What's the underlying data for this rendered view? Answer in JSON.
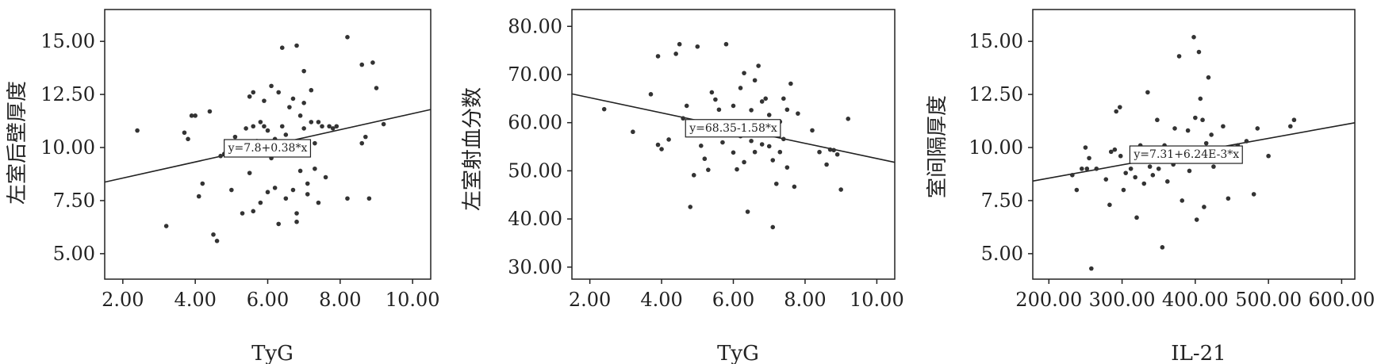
{
  "chart_data": [
    {
      "type": "scatter",
      "xlabel": "TyG",
      "ylabel": "左室后壁厚度",
      "xlim": [
        1.5,
        10.5
      ],
      "ylim": [
        3.8,
        16.5
      ],
      "x_ticks": [
        "2.00",
        "4.00",
        "6.00",
        "8.00",
        "10.00"
      ],
      "x_tick_values": [
        2,
        4,
        6,
        8,
        10
      ],
      "y_ticks": [
        "5.00",
        "7.50",
        "10.00",
        "12.50",
        "15.00"
      ],
      "y_tick_values": [
        5,
        7.5,
        10,
        12.5,
        15
      ],
      "fit_line": {
        "intercept": 7.8,
        "slope": 0.38
      },
      "equation": "y=7.8+0.38*x",
      "equation_at": [
        6.0,
        10.0
      ],
      "points": [
        [
          2.4,
          10.8
        ],
        [
          3.2,
          6.3
        ],
        [
          3.7,
          10.7
        ],
        [
          3.8,
          10.4
        ],
        [
          3.9,
          11.5
        ],
        [
          4.0,
          11.5
        ],
        [
          4.1,
          7.7
        ],
        [
          4.2,
          8.3
        ],
        [
          4.4,
          11.7
        ],
        [
          4.5,
          5.9
        ],
        [
          4.6,
          5.6
        ],
        [
          4.7,
          9.6
        ],
        [
          4.8,
          9.7
        ],
        [
          4.9,
          10.1
        ],
        [
          5.0,
          8.0
        ],
        [
          5.1,
          10.5
        ],
        [
          5.2,
          10.2
        ],
        [
          5.3,
          6.9
        ],
        [
          5.4,
          10.9
        ],
        [
          5.5,
          12.4
        ],
        [
          5.5,
          8.8
        ],
        [
          5.6,
          11.0
        ],
        [
          5.6,
          12.6
        ],
        [
          5.6,
          7.0
        ],
        [
          5.7,
          10.3
        ],
        [
          5.8,
          11.2
        ],
        [
          5.8,
          7.4
        ],
        [
          5.9,
          11.0
        ],
        [
          5.9,
          12.2
        ],
        [
          6.0,
          7.9
        ],
        [
          6.0,
          10.8
        ],
        [
          6.1,
          12.9
        ],
        [
          6.1,
          9.5
        ],
        [
          6.2,
          10.4
        ],
        [
          6.2,
          8.1
        ],
        [
          6.3,
          12.6
        ],
        [
          6.3,
          6.4
        ],
        [
          6.4,
          14.7
        ],
        [
          6.4,
          11.0
        ],
        [
          6.5,
          10.6
        ],
        [
          6.5,
          7.6
        ],
        [
          6.6,
          11.9
        ],
        [
          6.6,
          10.0
        ],
        [
          6.7,
          8.0
        ],
        [
          6.7,
          12.3
        ],
        [
          6.8,
          14.8
        ],
        [
          6.8,
          6.9
        ],
        [
          6.8,
          6.5
        ],
        [
          6.9,
          11.5
        ],
        [
          6.9,
          8.9
        ],
        [
          7.0,
          12.1
        ],
        [
          7.0,
          10.9
        ],
        [
          7.0,
          13.6
        ],
        [
          7.1,
          8.3
        ],
        [
          7.1,
          7.8
        ],
        [
          7.2,
          11.2
        ],
        [
          7.2,
          12.7
        ],
        [
          7.3,
          10.2
        ],
        [
          7.3,
          9.0
        ],
        [
          7.4,
          11.2
        ],
        [
          7.4,
          7.4
        ],
        [
          7.5,
          11.0
        ],
        [
          7.6,
          8.6
        ],
        [
          7.7,
          11.0
        ],
        [
          7.8,
          10.9
        ],
        [
          7.9,
          11.0
        ],
        [
          8.2,
          15.2
        ],
        [
          8.2,
          7.6
        ],
        [
          8.6,
          13.9
        ],
        [
          8.6,
          10.2
        ],
        [
          8.7,
          10.5
        ],
        [
          8.8,
          7.6
        ],
        [
          8.9,
          14.0
        ],
        [
          9.0,
          12.8
        ],
        [
          9.2,
          11.1
        ]
      ]
    },
    {
      "type": "scatter",
      "xlabel": "TyG",
      "ylabel": "左室射血分数",
      "xlim": [
        1.5,
        10.5
      ],
      "ylim": [
        27.5,
        83.5
      ],
      "x_ticks": [
        "2.00",
        "4.00",
        "6.00",
        "8.00",
        "10.00"
      ],
      "x_tick_values": [
        2,
        4,
        6,
        8,
        10
      ],
      "y_ticks": [
        "30.00",
        "40.00",
        "50.00",
        "60.00",
        "70.00",
        "80.00"
      ],
      "y_tick_values": [
        30,
        40,
        50,
        60,
        70,
        80
      ],
      "fit_line": {
        "intercept": 68.35,
        "slope": -1.58
      },
      "equation": "y=68.35-1.58*x",
      "equation_at": [
        6.0,
        59.0
      ],
      "points": [
        [
          2.4,
          62.8
        ],
        [
          3.2,
          58.1
        ],
        [
          3.7,
          65.9
        ],
        [
          3.9,
          55.4
        ],
        [
          3.9,
          73.8
        ],
        [
          4.0,
          54.5
        ],
        [
          4.2,
          56.5
        ],
        [
          4.4,
          74.3
        ],
        [
          4.5,
          76.3
        ],
        [
          4.6,
          60.9
        ],
        [
          4.7,
          63.5
        ],
        [
          4.8,
          42.5
        ],
        [
          4.9,
          49.1
        ],
        [
          5.0,
          75.8
        ],
        [
          5.1,
          55.2
        ],
        [
          5.2,
          52.5
        ],
        [
          5.3,
          50.2
        ],
        [
          5.4,
          66.3
        ],
        [
          5.5,
          64.8
        ],
        [
          5.5,
          57.6
        ],
        [
          5.6,
          62.7
        ],
        [
          5.7,
          55.9
        ],
        [
          5.8,
          76.3
        ],
        [
          5.8,
          60.2
        ],
        [
          5.9,
          58.2
        ],
        [
          6.0,
          63.5
        ],
        [
          6.0,
          53.8
        ],
        [
          6.1,
          50.3
        ],
        [
          6.2,
          67.2
        ],
        [
          6.2,
          57.2
        ],
        [
          6.3,
          70.3
        ],
        [
          6.3,
          51.8
        ],
        [
          6.4,
          41.5
        ],
        [
          6.4,
          59.8
        ],
        [
          6.5,
          62.6
        ],
        [
          6.5,
          56.2
        ],
        [
          6.6,
          68.8
        ],
        [
          6.6,
          53.9
        ],
        [
          6.7,
          71.8
        ],
        [
          6.7,
          58.6
        ],
        [
          6.8,
          64.4
        ],
        [
          6.8,
          55.5
        ],
        [
          6.9,
          65.0
        ],
        [
          6.9,
          59.4
        ],
        [
          7.0,
          55.1
        ],
        [
          7.0,
          61.6
        ],
        [
          7.1,
          52.2
        ],
        [
          7.1,
          38.3
        ],
        [
          7.2,
          58.5
        ],
        [
          7.2,
          47.3
        ],
        [
          7.3,
          60.2
        ],
        [
          7.3,
          53.9
        ],
        [
          7.4,
          56.6
        ],
        [
          7.4,
          65.0
        ],
        [
          7.5,
          62.7
        ],
        [
          7.5,
          50.7
        ],
        [
          7.6,
          68.1
        ],
        [
          7.7,
          46.7
        ],
        [
          7.8,
          61.9
        ],
        [
          8.2,
          58.4
        ],
        [
          8.4,
          53.9
        ],
        [
          8.6,
          51.3
        ],
        [
          8.7,
          54.4
        ],
        [
          8.8,
          54.3
        ],
        [
          8.9,
          53.4
        ],
        [
          9.0,
          46.1
        ],
        [
          9.2,
          60.8
        ]
      ]
    },
    {
      "type": "scatter",
      "xlabel": "IL-21",
      "ylabel": "室间隔厚度",
      "xlim": [
        178,
        618
      ],
      "ylim": [
        3.8,
        16.5
      ],
      "x_ticks": [
        "200.00",
        "300.00",
        "400.00",
        "500.00",
        "600.00"
      ],
      "x_tick_values": [
        200,
        300,
        400,
        500,
        600
      ],
      "y_ticks": [
        "5.00",
        "7.50",
        "10.00",
        "12.50",
        "15.00"
      ],
      "y_tick_values": [
        5,
        7.5,
        10,
        12.5,
        15
      ],
      "fit_line": {
        "intercept": 7.31,
        "slope": 0.00624
      },
      "equation": "y=7.31+6.24E-3*x",
      "equation_at": [
        388,
        9.7
      ],
      "points": [
        [
          232,
          8.7
        ],
        [
          238,
          8.0
        ],
        [
          245,
          9.0
        ],
        [
          250,
          10.0
        ],
        [
          252,
          9.0
        ],
        [
          255,
          9.5
        ],
        [
          258,
          4.3
        ],
        [
          265,
          9.0
        ],
        [
          278,
          8.5
        ],
        [
          283,
          7.3
        ],
        [
          285,
          9.8
        ],
        [
          290,
          9.9
        ],
        [
          292,
          11.7
        ],
        [
          297,
          11.9
        ],
        [
          298,
          9.6
        ],
        [
          302,
          8.0
        ],
        [
          305,
          8.8
        ],
        [
          312,
          9.0
        ],
        [
          315,
          9.4
        ],
        [
          318,
          8.6
        ],
        [
          320,
          6.7
        ],
        [
          322,
          9.8
        ],
        [
          325,
          10.1
        ],
        [
          330,
          8.3
        ],
        [
          335,
          12.6
        ],
        [
          338,
          9.1
        ],
        [
          342,
          8.7
        ],
        [
          348,
          11.3
        ],
        [
          350,
          9.0
        ],
        [
          355,
          5.3
        ],
        [
          358,
          10.1
        ],
        [
          362,
          8.4
        ],
        [
          365,
          9.4
        ],
        [
          370,
          9.2
        ],
        [
          372,
          10.9
        ],
        [
          378,
          14.3
        ],
        [
          382,
          7.5
        ],
        [
          385,
          9.6
        ],
        [
          390,
          10.8
        ],
        [
          392,
          8.9
        ],
        [
          398,
          15.2
        ],
        [
          400,
          11.4
        ],
        [
          402,
          6.6
        ],
        [
          405,
          14.5
        ],
        [
          407,
          12.3
        ],
        [
          410,
          11.3
        ],
        [
          412,
          7.2
        ],
        [
          415,
          10.2
        ],
        [
          418,
          13.3
        ],
        [
          422,
          10.6
        ],
        [
          425,
          9.1
        ],
        [
          430,
          9.8
        ],
        [
          438,
          11.0
        ],
        [
          445,
          7.6
        ],
        [
          452,
          9.9
        ],
        [
          458,
          10.1
        ],
        [
          470,
          10.3
        ],
        [
          480,
          7.8
        ],
        [
          485,
          10.9
        ],
        [
          500,
          9.6
        ],
        [
          530,
          11.0
        ],
        [
          535,
          11.3
        ]
      ]
    }
  ]
}
